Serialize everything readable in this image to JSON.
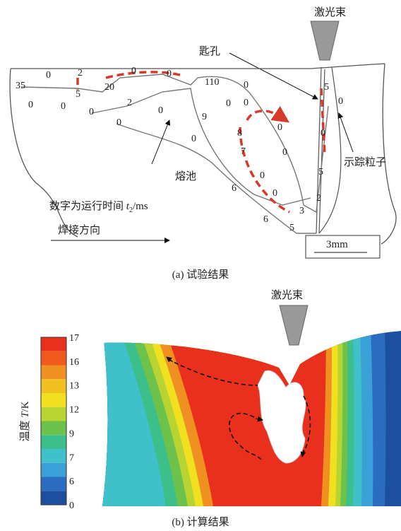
{
  "panel_a": {
    "laser_label": "激光束",
    "keyhole_label": "匙孔",
    "melt_pool_label": "熔池",
    "tracer_label": "示踪粒子",
    "note_text": "数字为运行时间",
    "note_var": "t",
    "note_sub": "2",
    "note_unit": "/ms",
    "direction_label": "焊接方向",
    "scale_label": "3mm",
    "caption": "(a) 试验结果",
    "times": [
      "35",
      "0",
      "0",
      "2",
      "5",
      "0",
      "0",
      "20",
      "0",
      "0",
      "2",
      "0",
      "0",
      "110",
      "0",
      "0",
      "0",
      "9",
      "0",
      "8",
      "0",
      "7",
      "0",
      "0",
      "6",
      "0",
      "6",
      "5",
      "3",
      "5",
      "0",
      "0",
      "5",
      "2"
    ]
  },
  "panel_b": {
    "laser_label": "激光束",
    "colorbar_text": "温度",
    "colorbar_var": "T",
    "colorbar_unit": "/K",
    "colorbar_labels": [
      "17",
      "16",
      "13",
      "12",
      "9",
      "7",
      "6",
      "0"
    ],
    "caption": "(b) 计算结果"
  }
}
